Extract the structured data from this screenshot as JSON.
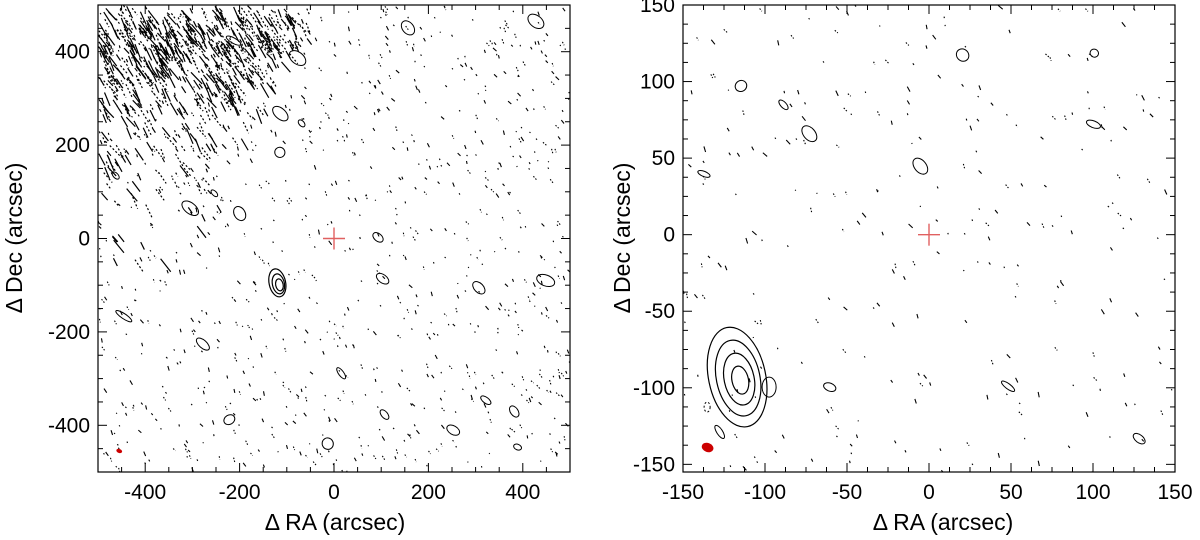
{
  "chart_data": [
    {
      "type": "contour",
      "xlabel": "Δ RA (arcsec)",
      "ylabel": "Δ Dec (arcsec)",
      "xlim": [
        -500,
        500
      ],
      "ylim": [
        -500,
        500
      ],
      "xticks": [
        -400,
        -200,
        0,
        200,
        400
      ],
      "yticks": [
        -400,
        -200,
        0,
        200,
        400
      ],
      "grid": false,
      "cross": {
        "x": 0,
        "y": 0,
        "color": "#e06060"
      },
      "beam": {
        "x": -455,
        "y": -455,
        "color": "#cc0000"
      },
      "features": [
        {
          "name": "source-contours",
          "x": -120,
          "y": -95,
          "levels": 3,
          "size": 10
        }
      ]
    },
    {
      "type": "contour",
      "xlabel": "Δ RA (arcsec)",
      "ylabel": "Δ Dec (arcsec)",
      "xlim": [
        -150,
        150
      ],
      "ylim": [
        -155,
        150
      ],
      "xticks": [
        -150,
        -100,
        -50,
        0,
        50,
        100,
        150
      ],
      "yticks": [
        -150,
        -100,
        -50,
        0,
        50,
        100,
        150
      ],
      "grid": false,
      "cross": {
        "x": 0,
        "y": 0,
        "color": "#e06060"
      },
      "beam": {
        "x": -135,
        "y": -139,
        "color": "#cc0000"
      },
      "features": [
        {
          "name": "source-contours",
          "x": -117,
          "y": -93,
          "levels": 4,
          "size": 10
        }
      ]
    }
  ]
}
